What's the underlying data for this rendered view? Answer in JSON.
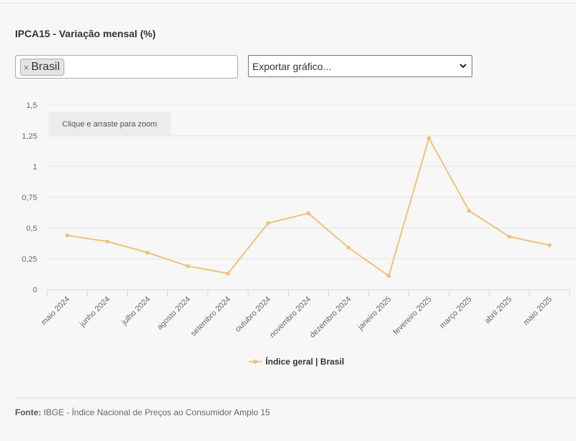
{
  "header": {
    "title": "IPCA15 - Variação mensal (%)"
  },
  "filter": {
    "chip_label": "Brasil",
    "remove_symbol": "×"
  },
  "export": {
    "label": "Exportar gráfico..."
  },
  "zoom_hint": "Clique e arraste para zoom",
  "legend": {
    "label": "Índice geral | Brasil"
  },
  "source": {
    "label": "Fonte:",
    "text": "IBGE - Índice Nacional de Preços ao Consumidor Amplo 15"
  },
  "colors": {
    "series": "#f0c27a",
    "grid": "#e6e6e6",
    "axis": "#ccd6eb"
  },
  "chart_data": {
    "type": "line",
    "title": "IPCA15 - Variação mensal (%)",
    "categories": [
      "maio 2024",
      "junho 2024",
      "julho 2024",
      "agosto 2024",
      "setembro 2024",
      "outubro 2024",
      "novembro 2024",
      "dezembro 2024",
      "janeiro 2025",
      "fevereiro 2025",
      "março 2025",
      "abril 2025",
      "maio 2025"
    ],
    "series": [
      {
        "name": "Índice geral | Brasil",
        "values": [
          0.44,
          0.39,
          0.3,
          0.19,
          0.13,
          0.54,
          0.62,
          0.34,
          0.11,
          1.23,
          0.64,
          0.43,
          0.36
        ]
      }
    ],
    "yticks": [
      "0",
      "0,25",
      "0,5",
      "0,75",
      "1",
      "1,25",
      "1,5"
    ],
    "ylim": [
      0,
      1.5
    ],
    "grid": true,
    "legend": "bottom-center"
  }
}
